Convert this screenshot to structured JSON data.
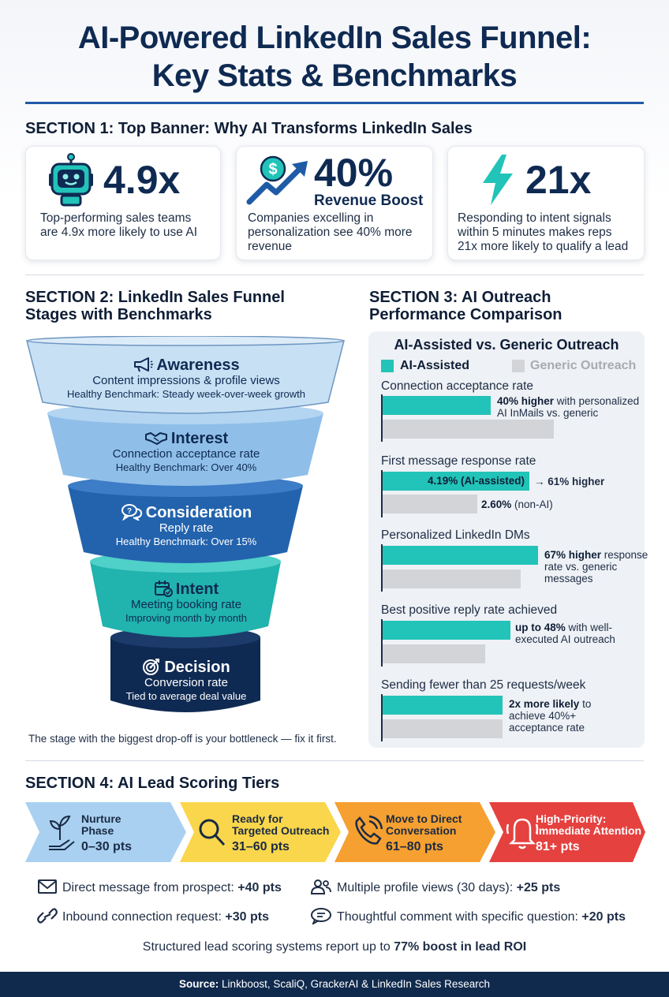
{
  "title": {
    "line1": "AI-Powered LinkedIn Sales Funnel:",
    "line2": "Key Stats & Benchmarks"
  },
  "section1": {
    "heading": "SECTION 1: Top Banner: Why AI Transforms LinkedIn Sales",
    "cards": [
      {
        "icon": "robot-icon",
        "stat": "4.9x",
        "sub": "",
        "text1": "Top-performing sales teams",
        "text2": "are 4.9x more likely to use AI",
        "text3": ""
      },
      {
        "icon": "dollar-growth-icon",
        "stat": "40%",
        "sub": "Revenue Boost",
        "text1": "Companies excelling in",
        "text2": "personalization see 40% more",
        "text3": "revenue"
      },
      {
        "icon": "lightning-icon",
        "stat": "21x",
        "sub": "",
        "text1": "Responding to intent signals",
        "text2": "within 5 minutes makes reps",
        "text3": "21x more likely to qualify a lead"
      }
    ]
  },
  "section2": {
    "heading1": "SECTION 2: LinkedIn Sales Funnel",
    "heading2": "Stages with Benchmarks",
    "stages": [
      {
        "icon": "megaphone-icon",
        "name": "Awareness",
        "desc": "Content impressions & profile views",
        "bench": "Healthy Benchmark: Steady week-over-week growth",
        "color": "#c7e0f4"
      },
      {
        "icon": "handshake-icon",
        "name": "Interest",
        "desc": "Connection acceptance rate",
        "bench": "Healthy Benchmark: Over 40%",
        "color": "#8fbfe8"
      },
      {
        "icon": "chat-bubbles-icon",
        "name": "Consideration",
        "desc": "Reply rate",
        "bench": "Healthy Benchmark: Over 15%",
        "color": "#2363ad"
      },
      {
        "icon": "calendar-check-icon",
        "name": "Intent",
        "desc": "Meeting booking rate",
        "bench": "Improving month by month",
        "color": "#21b3ad"
      },
      {
        "icon": "target-icon",
        "name": "Decision",
        "desc": "Conversion rate",
        "bench": "Tied to average deal value",
        "color": "#0f2a52"
      }
    ],
    "footnote": "The stage with the biggest drop-off is your bottleneck — fix it first."
  },
  "section3": {
    "heading1": "SECTION 3: AI Outreach",
    "heading2": "Performance Comparison",
    "panel_title": "AI-Assisted vs. Generic Outreach",
    "legend_ai": "AI-Assisted",
    "legend_generic": "Generic Outreach",
    "colors": {
      "ai": "#22c3b8",
      "generic": "#d2d4d8"
    },
    "metrics": [
      {
        "label": "Connection acceptance rate",
        "note_bold": "40% higher",
        "note1": " with personalized",
        "note2": "AI InMails vs. generic",
        "note3": ""
      },
      {
        "label": "First message response rate",
        "ai_value": "4.19% (AI-assisted)",
        "ai_note": "→ 61% higher",
        "generic_value_bold": "2.60%",
        "generic_value": " (non-AI)"
      },
      {
        "label": "Personalized LinkedIn DMs",
        "note_bold": "67% higher",
        "note1": " response",
        "note2": "rate vs. generic",
        "note3": "messages"
      },
      {
        "label": "Best positive reply rate achieved",
        "note_bold": "up to 48%",
        "note1": " with well-",
        "note2": "executed AI outreach",
        "note3": ""
      },
      {
        "label": "Sending fewer than 25 requests/week",
        "note_bold": "2x more likely",
        "note1": " to",
        "note2": "achieve 40%+",
        "note3": "acceptance rate"
      }
    ]
  },
  "section4": {
    "heading": "SECTION 4: AI Lead Scoring Tiers",
    "tiers": [
      {
        "icon": "sprout-icon",
        "line1": "Nurture",
        "line2": "Phase",
        "pts": "0–30 pts",
        "color": "#a9d0f0"
      },
      {
        "icon": "magnifier-icon",
        "line1": "Ready for",
        "line2": "Targeted Outreach",
        "pts": "31–60 pts",
        "color": "#f9d64b"
      },
      {
        "icon": "phone-icon",
        "line1": "Move to Direct",
        "line2": "Conversation",
        "pts": "61–80 pts",
        "color": "#f5a030"
      },
      {
        "icon": "bell-icon",
        "line1": "High-Priority:",
        "line2": "Immediate Attention",
        "pts": "81+ pts",
        "color": "#e5413f"
      }
    ],
    "signals": [
      {
        "icon": "envelope-icon",
        "text": "Direct message from prospect: ",
        "pts": "+40 pts"
      },
      {
        "icon": "people-icon",
        "text": "Multiple profile views (30 days): ",
        "pts": "+25 pts"
      },
      {
        "icon": "link-icon",
        "text": "Inbound connection request: ",
        "pts": "+30 pts"
      },
      {
        "icon": "comment-icon",
        "text": "Thoughtful comment with specific question: ",
        "pts": "+20 pts"
      }
    ],
    "roi_text": "Structured lead scoring systems report up to ",
    "roi_bold": "77% boost in lead ROI"
  },
  "footer": {
    "label": "Source:",
    "text": " Linkboost, ScaliQ, GrackerAI & LinkedIn Sales Research"
  }
}
